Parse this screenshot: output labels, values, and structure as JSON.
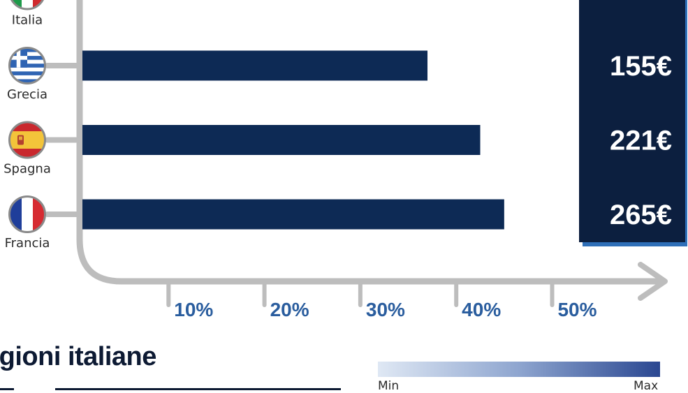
{
  "chart_data": {
    "type": "bar",
    "orientation": "horizontal",
    "categories": [
      "Italia",
      "Grecia",
      "Spagna",
      "Francia"
    ],
    "values": [
      null,
      37,
      42.5,
      45
    ],
    "value_labels": [
      "",
      "155€",
      "221€",
      "265€"
    ],
    "x_ticks": [
      "10%",
      "20%",
      "30%",
      "40%",
      "50%"
    ],
    "x_tick_values": [
      10,
      20,
      30,
      40,
      50
    ],
    "xlim": [
      0,
      60
    ],
    "colors": {
      "bar": "#0d2a55",
      "axis": "#bdbdbd",
      "tick_text": "#2a5d9e",
      "value_panel": "#0c1f3f",
      "value_panel_shadow": "#2f6fb8"
    }
  },
  "flags": [
    "italy-flag-icon",
    "greece-flag-icon",
    "spain-flag-icon",
    "france-flag-icon"
  ],
  "section_title": "egioni italiane",
  "legend_scale": {
    "min": "Min",
    "max": "Max"
  }
}
